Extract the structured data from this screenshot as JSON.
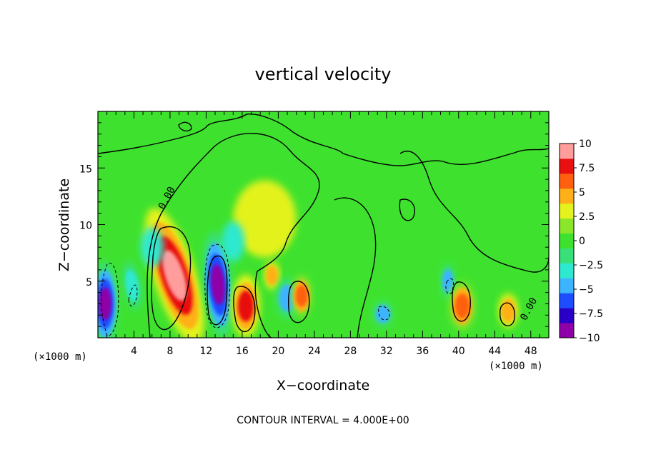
{
  "chart_data": {
    "type": "heatmap",
    "title": "vertical velocity",
    "xlabel": "X−coordinate",
    "ylabel": "Z−coordinate",
    "x_unit": "(×1000 m)",
    "y_unit": "(×1000 m)",
    "xlim": [
      0,
      50
    ],
    "ylim": [
      0,
      20
    ],
    "x_ticks": [
      "4",
      "8",
      "12",
      "16",
      "20",
      "24",
      "28",
      "32",
      "36",
      "40",
      "44",
      "48"
    ],
    "y_ticks": [
      "5",
      "10",
      "15"
    ],
    "contour_interval_text": "CONTOUR INTERVAL = 4.000E+00",
    "contour_label": "0.00",
    "colorbar": {
      "min": -10,
      "max": 10,
      "ticks": [
        "10",
        "7.5",
        "5",
        "2.5",
        "0",
        "−2.5",
        "−5",
        "−7.5",
        "−10"
      ],
      "colors": [
        "#8f00a8",
        "#2a00c8",
        "#1e4dff",
        "#3cb4ff",
        "#2ee8d0",
        "#39e07a",
        "#3ee22e",
        "#8be52a",
        "#e4f21e",
        "#ffb018",
        "#ff6010",
        "#e81010",
        "#ff9c9c"
      ]
    },
    "features": [
      {
        "x": 0.8,
        "z": 3.0,
        "value": -10
      },
      {
        "x": 3.8,
        "z": 4.6,
        "value": -4
      },
      {
        "x": 8.5,
        "z": 5.5,
        "value": 10
      },
      {
        "x": 13.3,
        "z": 4.7,
        "value": -10
      },
      {
        "x": 16.4,
        "z": 2.8,
        "value": 8
      },
      {
        "x": 19.3,
        "z": 5.5,
        "value": 5
      },
      {
        "x": 21.0,
        "z": 3.5,
        "value": -5
      },
      {
        "x": 22.6,
        "z": 3.7,
        "value": 7
      },
      {
        "x": 31.6,
        "z": 2.1,
        "value": -5
      },
      {
        "x": 38.8,
        "z": 5.0,
        "value": -5
      },
      {
        "x": 40.4,
        "z": 2.8,
        "value": 7
      },
      {
        "x": 45.5,
        "z": 2.4,
        "value": 5
      },
      {
        "x": 18.5,
        "z": 10.5,
        "value": 3
      },
      {
        "x": 6.0,
        "z": 8.0,
        "value": -3
      },
      {
        "x": 15.0,
        "z": 8.5,
        "value": -3
      }
    ]
  }
}
